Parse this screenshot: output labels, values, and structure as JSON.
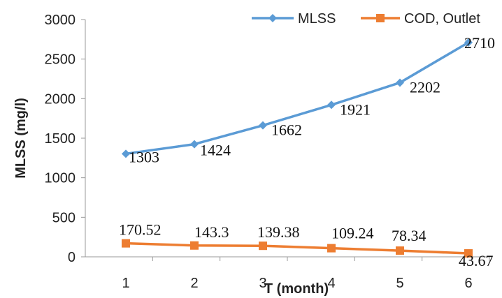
{
  "chart_data": {
    "type": "line",
    "title": "",
    "xlabel": "T (month)",
    "ylabel": "MLSS (mg/l)",
    "x": [
      1,
      2,
      3,
      4,
      5,
      6
    ],
    "ylim": [
      0,
      3000
    ],
    "yticks": [
      0,
      500,
      1000,
      1500,
      2000,
      2500,
      3000
    ],
    "grid": false,
    "legend_position": "top-right",
    "series": [
      {
        "name": "MLSS",
        "color": "#5B9BD5",
        "marker": "diamond",
        "values": [
          1303,
          1424,
          1662,
          1921,
          2202,
          2710
        ],
        "labels": [
          "1303",
          "1424",
          "1662",
          "1921",
          "2202",
          "2710"
        ]
      },
      {
        "name": "COD, Outlet",
        "color": "#ED7D31",
        "marker": "square",
        "values": [
          170.52,
          143.3,
          139.38,
          109.24,
          78.34,
          43.67
        ],
        "labels": [
          "170.52",
          "143.3",
          "139.38",
          "109.24",
          "78.34",
          "43.67"
        ]
      }
    ]
  }
}
